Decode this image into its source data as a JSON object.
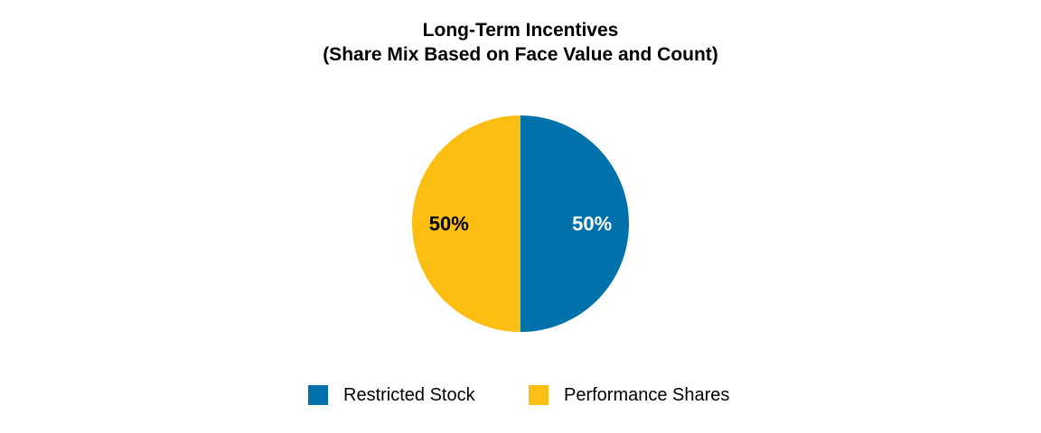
{
  "chart_data": {
    "type": "pie",
    "title_lines": [
      "Long-Term Incentives",
      "(Share Mix Based on Face Value and Count)"
    ],
    "slices": [
      {
        "name": "Restricted Stock",
        "value": 50,
        "label": "50%",
        "color": "#0072ab",
        "label_color": "#ffffff"
      },
      {
        "name": "Performance Shares",
        "value": 50,
        "label": "50%",
        "color": "#fbbf13",
        "label_color": "#000000"
      }
    ],
    "start_angle_deg": 0,
    "direction": "clockwise",
    "legend_position": "bottom"
  }
}
